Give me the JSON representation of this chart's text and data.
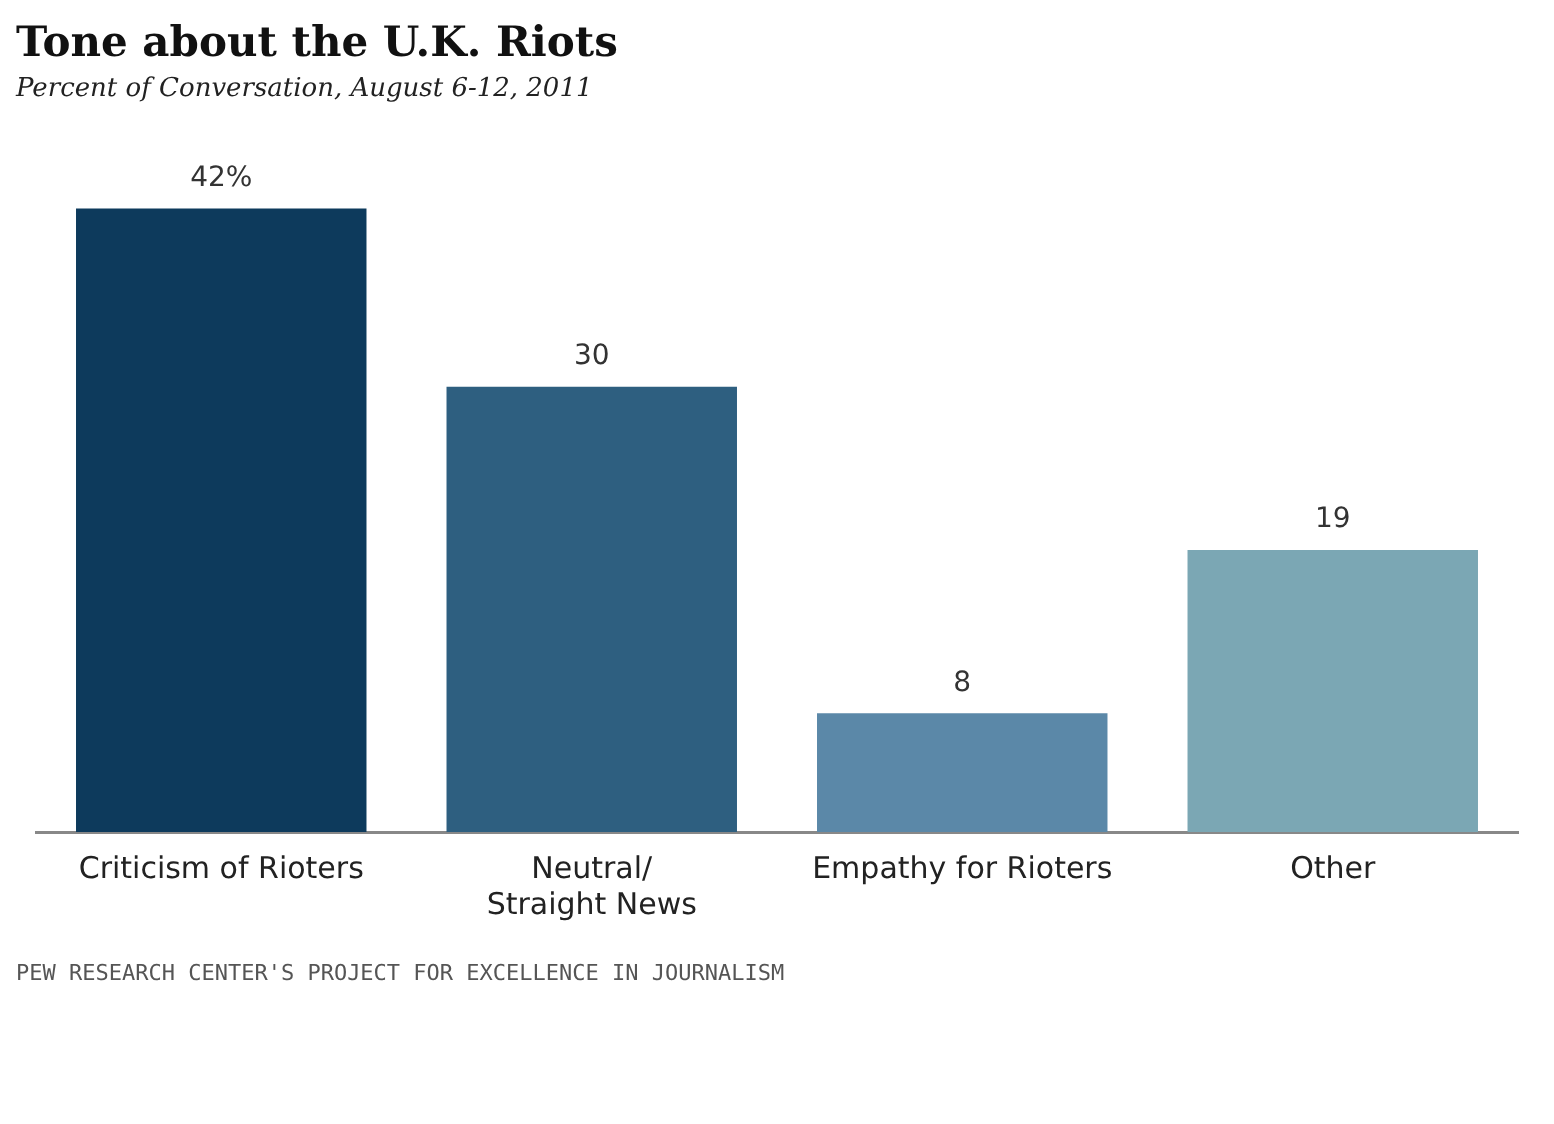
{
  "chart_data": {
    "type": "bar",
    "title": "Tone about the U.K. Riots",
    "subtitle": "Percent of Conversation, August 6-12, 2011",
    "categories": [
      "Criticism of Rioters",
      "Neutral/ Straight News",
      "Empathy for Rioters",
      "Other"
    ],
    "values": [
      42,
      30,
      8,
      19
    ],
    "colors": [
      "#0d3a5c",
      "#2e5f80",
      "#5b88a8",
      "#7ba7b4"
    ],
    "value_labels": [
      "42%",
      "30",
      "8",
      "19"
    ],
    "annotations": [
      "PEW RESEARCH CENTER'S PROJECT FOR EXCELLENCE IN JOURNALISM"
    ],
    "grid": false,
    "legend": false
  }
}
